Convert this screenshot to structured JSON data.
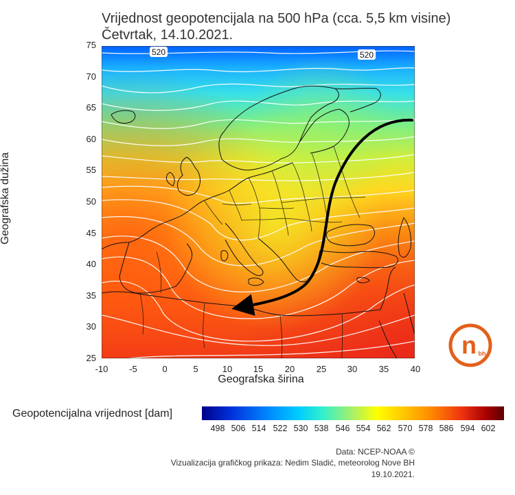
{
  "title": "Vrijednost geopotencijala na 500 hPa (cca. 5,5 km visine)",
  "subtitle": "Četvrtak, 14.10.2021.",
  "axes": {
    "ylabel": "Geografska dužina",
    "xlabel": "Geografska širina",
    "y_ticks": [
      "75",
      "70",
      "65",
      "60",
      "55",
      "50",
      "45",
      "40",
      "35",
      "30",
      "25"
    ],
    "x_ticks": [
      "-10",
      "-5",
      "0",
      "5",
      "10",
      "15",
      "20",
      "25",
      "30",
      "35",
      "40"
    ]
  },
  "contour_labels": [
    "520",
    "520"
  ],
  "colorbar": {
    "label": "Geopotencijalna vrijednost [dam]",
    "ticks": [
      "498",
      "506",
      "514",
      "522",
      "530",
      "538",
      "546",
      "554",
      "562",
      "570",
      "578",
      "586",
      "594",
      "602"
    ]
  },
  "credits": {
    "line1": "Data: NCEP-NOAA ©",
    "line2": "Vizualizacija grafičkog prikaza: Nedim Sladić, meteorolog Nove BH",
    "line3": "19.10.2021."
  },
  "logo": {
    "letter": "n",
    "small": "bh"
  }
}
